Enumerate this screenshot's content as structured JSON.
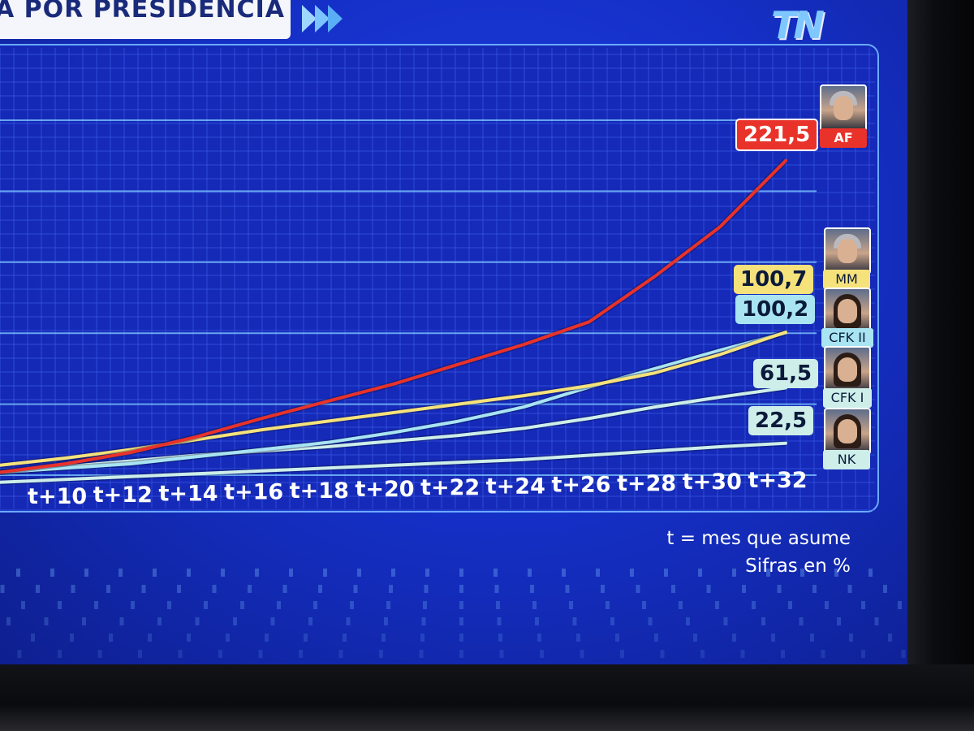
{
  "header": {
    "title": "A POR PRESIDENCIA",
    "logo": "TN"
  },
  "colors": {
    "background": "#1a36d8",
    "AF": "#e8322a",
    "MM": "#f6e27a",
    "CFK II": "#a8e4f2",
    "CFK I": "#cdeee9",
    "NK": "#cdeee9"
  },
  "icons": [
    "forward-icon",
    "portrait-icon"
  ],
  "chart_data": {
    "type": "line",
    "title": "",
    "xlabel": "",
    "ylabel": "",
    "x_ticks": [
      "t+10",
      "t+12",
      "t+14",
      "t+16",
      "t+18",
      "t+20",
      "t+22",
      "t+24",
      "t+26",
      "t+28",
      "t+30",
      "t+32"
    ],
    "xlim": [
      8,
      33
    ],
    "ylim": [
      0,
      260
    ],
    "grid": true,
    "legend": "right",
    "series": [
      {
        "name": "AF",
        "end_label": "221,5",
        "color": "#e8322a",
        "x": [
          8,
          10,
          12,
          14,
          16,
          18,
          20,
          22,
          24,
          26,
          28,
          30,
          32
        ],
        "values": [
          2,
          8,
          16,
          27,
          40,
          52,
          64,
          78,
          92,
          108,
          140,
          175,
          221.5
        ]
      },
      {
        "name": "MM",
        "end_label": "100,7",
        "color": "#f6e27a",
        "x": [
          8,
          10,
          12,
          14,
          16,
          18,
          20,
          22,
          24,
          26,
          28,
          30,
          32
        ],
        "values": [
          7,
          12,
          18,
          25,
          32,
          38,
          44,
          50,
          56,
          63,
          72,
          85,
          100.7
        ]
      },
      {
        "name": "CFK II",
        "end_label": "100,2",
        "color": "#a8e4f2",
        "x": [
          8,
          10,
          12,
          14,
          16,
          18,
          20,
          22,
          24,
          26,
          28,
          30,
          32
        ],
        "values": [
          2,
          5,
          8,
          13,
          18,
          23,
          30,
          38,
          48,
          62,
          75,
          88,
          100.2
        ]
      },
      {
        "name": "CFK I",
        "end_label": "61,5",
        "color": "#cdeee9",
        "x": [
          8,
          10,
          12,
          14,
          16,
          18,
          20,
          22,
          24,
          26,
          28,
          30,
          32
        ],
        "values": [
          2,
          6,
          10,
          14,
          17,
          20,
          24,
          28,
          33,
          40,
          48,
          55,
          61.5
        ]
      },
      {
        "name": "NK",
        "end_label": "22,5",
        "color": "#cdeee9",
        "x": [
          8,
          10,
          12,
          14,
          16,
          18,
          20,
          22,
          24,
          26,
          28,
          30,
          32
        ],
        "values": [
          -5,
          -3,
          -1,
          1,
          3,
          5,
          7,
          9,
          11,
          14,
          17,
          20,
          22.5
        ]
      }
    ]
  },
  "footnote": {
    "line1": "t = mes que asume",
    "line2": "Sifras en %"
  }
}
